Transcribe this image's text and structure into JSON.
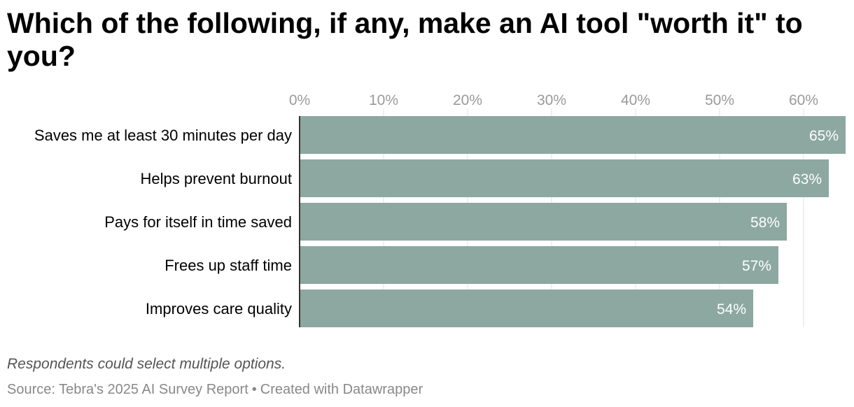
{
  "title": "Which of the following, if any, make an AI tool \"worth it\" to you?",
  "notes": "Respondents could select multiple options.",
  "source": {
    "text": "Source: Tebra's 2025 AI Survey Report",
    "separator": "•",
    "credit": "Created with Datawrapper"
  },
  "colors": {
    "bar": "#8ca8a1",
    "grid": "#e3e3e3",
    "tick_label": "#9a9a9a",
    "value_label": "#ffffff",
    "axis_line": "#333333"
  },
  "chart_data": {
    "type": "bar",
    "orientation": "horizontal",
    "categories": [
      "Saves me at least 30 minutes per day",
      "Helps prevent burnout",
      "Pays for itself in time saved",
      "Frees up staff time",
      "Improves care quality"
    ],
    "values": [
      65,
      63,
      58,
      57,
      54
    ],
    "value_labels": [
      "65%",
      "63%",
      "58%",
      "57%",
      "54%"
    ],
    "unit": "%",
    "xlim": [
      0,
      65
    ],
    "xticks": [
      0,
      10,
      20,
      30,
      40,
      50,
      60
    ],
    "xtick_labels": [
      "0%",
      "10%",
      "20%",
      "30%",
      "40%",
      "50%",
      "60%"
    ],
    "grid": true,
    "axis_position": "top"
  }
}
